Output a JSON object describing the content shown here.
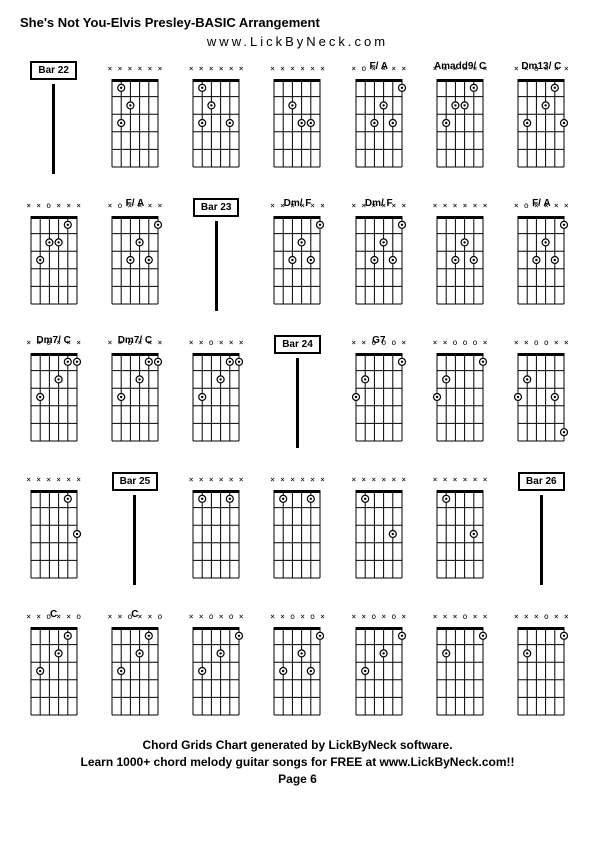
{
  "title": "She's Not You-Elvis Presley-BASIC Arrangement",
  "subtitle": "www.LickByNeck.com",
  "footer_line1": "Chord Grids Chart generated by LickByNeck software.",
  "footer_line2": "Learn 1000+ chord melody guitar songs for FREE at www.LickByNeck.com!!",
  "footer_page": "Page 6",
  "chord_diagram": {
    "width": 58,
    "height": 96,
    "frets": 5,
    "strings": 6,
    "line_color": "#000000",
    "dot_radius": 3.5,
    "open_radius": 3
  },
  "cells": [
    {
      "type": "bar",
      "label": "Bar 22"
    },
    {
      "type": "chord",
      "label": "",
      "markers": [
        "x",
        "x",
        "x",
        "x",
        "x",
        "x"
      ],
      "dots": [
        [
          1,
          2
        ],
        [
          2,
          3
        ],
        [
          3,
          2
        ]
      ]
    },
    {
      "type": "chord",
      "label": "",
      "markers": [
        "x",
        "x",
        "x",
        "x",
        "x",
        "x"
      ],
      "dots": [
        [
          1,
          2
        ],
        [
          2,
          3
        ],
        [
          3,
          2
        ],
        [
          3,
          5
        ]
      ]
    },
    {
      "type": "chord",
      "label": "",
      "markers": [
        "x",
        "x",
        "x",
        "x",
        "x",
        "x"
      ],
      "dots": [
        [
          2,
          3
        ],
        [
          3,
          4
        ],
        [
          3,
          5
        ]
      ]
    },
    {
      "type": "chord",
      "label": "F/ A",
      "markers": [
        "x",
        "o",
        "x",
        "x",
        "x",
        "x"
      ],
      "dots": [
        [
          1,
          6
        ],
        [
          2,
          4
        ],
        [
          3,
          3
        ],
        [
          3,
          5
        ]
      ]
    },
    {
      "type": "chord",
      "label": "Amadd9/ C",
      "markers": [
        "x",
        "x",
        "x",
        "x",
        "x",
        "x"
      ],
      "dots": [
        [
          1,
          5
        ],
        [
          2,
          3
        ],
        [
          2,
          4
        ],
        [
          3,
          2
        ]
      ]
    },
    {
      "type": "chord",
      "label": "Dm13/ C",
      "markers": [
        "x",
        "x",
        "o",
        "x",
        "x",
        "x"
      ],
      "dots": [
        [
          1,
          5
        ],
        [
          2,
          4
        ],
        [
          3,
          2
        ],
        [
          3,
          6
        ]
      ]
    },
    {
      "type": "chord",
      "label": "",
      "markers": [
        "x",
        "x",
        "o",
        "x",
        "x",
        "x"
      ],
      "dots": [
        [
          1,
          5
        ],
        [
          2,
          3
        ],
        [
          2,
          4
        ],
        [
          3,
          2
        ]
      ]
    },
    {
      "type": "chord",
      "label": "F/ A",
      "markers": [
        "x",
        "o",
        "x",
        "x",
        "x",
        "x"
      ],
      "dots": [
        [
          1,
          6
        ],
        [
          2,
          4
        ],
        [
          3,
          3
        ],
        [
          3,
          5
        ]
      ]
    },
    {
      "type": "bar",
      "label": "Bar 23"
    },
    {
      "type": "chord",
      "label": "Dm/ F",
      "markers": [
        "x",
        "x",
        "x",
        "x",
        "x",
        "x"
      ],
      "dots": [
        [
          1,
          6
        ],
        [
          2,
          4
        ],
        [
          3,
          3
        ],
        [
          3,
          5
        ]
      ]
    },
    {
      "type": "chord",
      "label": "Dm/ F",
      "markers": [
        "x",
        "x",
        "x",
        "x",
        "x",
        "x"
      ],
      "dots": [
        [
          1,
          6
        ],
        [
          2,
          4
        ],
        [
          3,
          3
        ],
        [
          3,
          5
        ]
      ]
    },
    {
      "type": "chord",
      "label": "",
      "markers": [
        "x",
        "x",
        "x",
        "x",
        "x",
        "x"
      ],
      "dots": [
        [
          2,
          4
        ],
        [
          3,
          3
        ],
        [
          3,
          5
        ]
      ]
    },
    {
      "type": "chord",
      "label": "F/ A",
      "markers": [
        "x",
        "o",
        "x",
        "x",
        "x",
        "x"
      ],
      "dots": [
        [
          1,
          6
        ],
        [
          2,
          4
        ],
        [
          3,
          3
        ],
        [
          3,
          5
        ]
      ]
    },
    {
      "type": "chord",
      "label": "Dm7/ C",
      "markers": [
        "x",
        "x",
        "o",
        "x",
        "x",
        "x"
      ],
      "dots": [
        [
          1,
          5
        ],
        [
          1,
          6
        ],
        [
          2,
          4
        ],
        [
          3,
          2
        ]
      ]
    },
    {
      "type": "chord",
      "label": "Dm7/ C",
      "markers": [
        "x",
        "x",
        "o",
        "x",
        "x",
        "x"
      ],
      "dots": [
        [
          1,
          5
        ],
        [
          1,
          6
        ],
        [
          2,
          4
        ],
        [
          3,
          2
        ]
      ]
    },
    {
      "type": "chord",
      "label": "",
      "markers": [
        "x",
        "x",
        "o",
        "x",
        "x",
        "x"
      ],
      "dots": [
        [
          1,
          5
        ],
        [
          1,
          6
        ],
        [
          2,
          4
        ],
        [
          3,
          2
        ]
      ]
    },
    {
      "type": "bar",
      "label": "Bar 24"
    },
    {
      "type": "chord",
      "label": "G7",
      "markers": [
        "x",
        "x",
        "o",
        "o",
        "o",
        "x"
      ],
      "dots": [
        [
          1,
          6
        ],
        [
          2,
          2
        ],
        [
          3,
          1
        ]
      ]
    },
    {
      "type": "chord",
      "label": "",
      "markers": [
        "x",
        "x",
        "o",
        "o",
        "o",
        "x"
      ],
      "dots": [
        [
          1,
          6
        ],
        [
          2,
          2
        ],
        [
          3,
          1
        ]
      ]
    },
    {
      "type": "chord",
      "label": "",
      "markers": [
        "x",
        "x",
        "o",
        "o",
        "x",
        "x"
      ],
      "dots": [
        [
          2,
          2
        ],
        [
          3,
          1
        ],
        [
          3,
          5
        ],
        [
          5,
          6
        ]
      ]
    },
    {
      "type": "chord",
      "label": "",
      "markers": [
        "x",
        "x",
        "x",
        "x",
        "x",
        "x"
      ],
      "dots": [
        [
          1,
          5
        ],
        [
          3,
          6
        ]
      ]
    },
    {
      "type": "bar",
      "label": "Bar 25"
    },
    {
      "type": "chord",
      "label": "",
      "markers": [
        "x",
        "x",
        "x",
        "x",
        "x",
        "x"
      ],
      "dots": [
        [
          1,
          2
        ],
        [
          1,
          5
        ]
      ]
    },
    {
      "type": "chord",
      "label": "",
      "markers": [
        "x",
        "x",
        "x",
        "x",
        "x",
        "x"
      ],
      "dots": [
        [
          1,
          2
        ],
        [
          1,
          5
        ]
      ]
    },
    {
      "type": "chord",
      "label": "",
      "markers": [
        "x",
        "x",
        "x",
        "x",
        "x",
        "x"
      ],
      "dots": [
        [
          1,
          2
        ],
        [
          3,
          5
        ]
      ]
    },
    {
      "type": "chord",
      "label": "",
      "markers": [
        "x",
        "x",
        "x",
        "x",
        "x",
        "x"
      ],
      "dots": [
        [
          1,
          2
        ],
        [
          3,
          5
        ]
      ]
    },
    {
      "type": "bar",
      "label": "Bar 26"
    },
    {
      "type": "chord",
      "label": "C",
      "markers": [
        "x",
        "x",
        "o",
        "x",
        "x",
        "o"
      ],
      "dots": [
        [
          1,
          5
        ],
        [
          2,
          4
        ],
        [
          3,
          2
        ]
      ]
    },
    {
      "type": "chord",
      "label": "C",
      "markers": [
        "x",
        "x",
        "o",
        "x",
        "x",
        "o"
      ],
      "dots": [
        [
          1,
          5
        ],
        [
          2,
          4
        ],
        [
          3,
          2
        ]
      ]
    },
    {
      "type": "chord",
      "label": "",
      "markers": [
        "x",
        "x",
        "o",
        "x",
        "o",
        "x"
      ],
      "dots": [
        [
          1,
          6
        ],
        [
          2,
          4
        ],
        [
          3,
          2
        ]
      ]
    },
    {
      "type": "chord",
      "label": "",
      "markers": [
        "x",
        "x",
        "o",
        "x",
        "o",
        "x"
      ],
      "dots": [
        [
          1,
          6
        ],
        [
          2,
          4
        ],
        [
          3,
          2
        ],
        [
          3,
          5
        ]
      ]
    },
    {
      "type": "chord",
      "label": "",
      "markers": [
        "x",
        "x",
        "o",
        "x",
        "o",
        "x"
      ],
      "dots": [
        [
          1,
          6
        ],
        [
          2,
          4
        ],
        [
          3,
          2
        ]
      ]
    },
    {
      "type": "chord",
      "label": "",
      "markers": [
        "x",
        "x",
        "x",
        "o",
        "x",
        "x"
      ],
      "dots": [
        [
          1,
          6
        ],
        [
          2,
          2
        ]
      ]
    },
    {
      "type": "chord",
      "label": "",
      "markers": [
        "x",
        "x",
        "x",
        "o",
        "x",
        "x"
      ],
      "dots": [
        [
          1,
          6
        ],
        [
          2,
          2
        ]
      ]
    }
  ]
}
